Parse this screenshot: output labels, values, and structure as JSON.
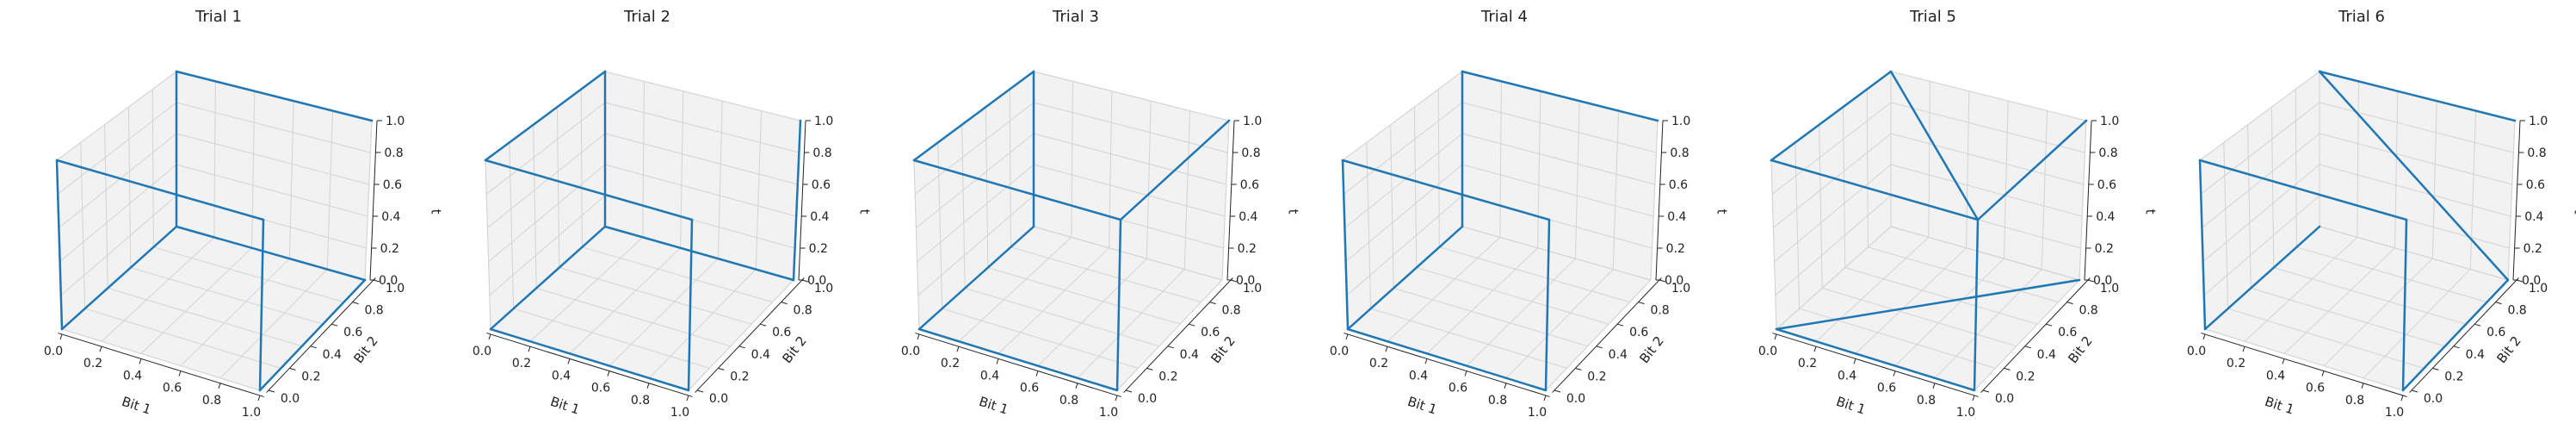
{
  "chart_data": [
    {
      "type": "line3d",
      "title": "Trial 1",
      "xlabel": "Bit 1",
      "ylabel": "Bit 2",
      "zlabel": "t",
      "xlim": [
        0,
        1
      ],
      "ylim": [
        0,
        1
      ],
      "zlim": [
        0,
        1
      ],
      "xticks": [
        "0.0",
        "0.2",
        "0.4",
        "0.6",
        "0.8",
        "1.0"
      ],
      "yticks": [
        "0.0",
        "0.2",
        "0.4",
        "0.6",
        "0.8",
        "1.0"
      ],
      "zticks": [
        "0.0",
        "0.2",
        "0.4",
        "0.6",
        "0.8",
        "1.0"
      ],
      "color": "#1f77b4",
      "points": [
        [
          1,
          1,
          1
        ],
        [
          0,
          1,
          1
        ],
        [
          0,
          1,
          0
        ],
        [
          0,
          0,
          0
        ],
        [
          0,
          0,
          1
        ],
        [
          1,
          0,
          1
        ],
        [
          1,
          0,
          0
        ],
        [
          1,
          1,
          0
        ],
        [
          0,
          1,
          0
        ]
      ]
    },
    {
      "type": "line3d",
      "title": "Trial 2",
      "xlabel": "Bit 1",
      "ylabel": "Bit 2",
      "zlabel": "t",
      "xlim": [
        0,
        1
      ],
      "ylim": [
        0,
        1
      ],
      "zlim": [
        0,
        1
      ],
      "xticks": [
        "0.0",
        "0.2",
        "0.4",
        "0.6",
        "0.8",
        "1.0"
      ],
      "yticks": [
        "0.0",
        "0.2",
        "0.4",
        "0.6",
        "0.8",
        "1.0"
      ],
      "zticks": [
        "0.0",
        "0.2",
        "0.4",
        "0.6",
        "0.8",
        "1.0"
      ],
      "color": "#1f77b4",
      "points": [
        [
          1,
          1,
          1
        ],
        [
          1,
          1,
          0
        ],
        [
          0,
          1,
          0
        ],
        [
          0,
          1,
          1
        ],
        [
          0,
          0,
          1
        ],
        [
          1,
          0,
          1
        ],
        [
          1,
          0,
          0
        ],
        [
          0,
          0,
          0
        ],
        [
          0,
          1,
          0
        ]
      ]
    },
    {
      "type": "line3d",
      "title": "Trial 3",
      "xlabel": "Bit 1",
      "ylabel": "Bit 2",
      "zlabel": "t",
      "xlim": [
        0,
        1
      ],
      "ylim": [
        0,
        1
      ],
      "zlim": [
        0,
        1
      ],
      "xticks": [
        "0.0",
        "0.2",
        "0.4",
        "0.6",
        "0.8",
        "1.0"
      ],
      "yticks": [
        "0.0",
        "0.2",
        "0.4",
        "0.6",
        "0.8",
        "1.0"
      ],
      "zticks": [
        "0.0",
        "0.2",
        "0.4",
        "0.6",
        "0.8",
        "1.0"
      ],
      "color": "#1f77b4",
      "points": [
        [
          1,
          1,
          1
        ],
        [
          1,
          0,
          1
        ],
        [
          0,
          0,
          1
        ],
        [
          0,
          1,
          1
        ],
        [
          0,
          1,
          0
        ],
        [
          0,
          0,
          0
        ],
        [
          1,
          0,
          0
        ],
        [
          1,
          0,
          1
        ]
      ]
    },
    {
      "type": "line3d",
      "title": "Trial 4",
      "xlabel": "Bit 1",
      "ylabel": "Bit 2",
      "zlabel": "t",
      "xlim": [
        0,
        1
      ],
      "ylim": [
        0,
        1
      ],
      "zlim": [
        0,
        1
      ],
      "xticks": [
        "0.0",
        "0.2",
        "0.4",
        "0.6",
        "0.8",
        "1.0"
      ],
      "yticks": [
        "0.0",
        "0.2",
        "0.4",
        "0.6",
        "0.8",
        "1.0"
      ],
      "zticks": [
        "0.0",
        "0.2",
        "0.4",
        "0.6",
        "0.8",
        "1.0"
      ],
      "color": "#1f77b4",
      "points": [
        [
          1,
          1,
          1
        ],
        [
          0,
          1,
          1
        ],
        [
          0,
          1,
          0
        ],
        [
          0,
          0,
          0
        ],
        [
          0,
          0,
          1
        ],
        [
          1,
          0,
          1
        ],
        [
          1,
          0,
          0
        ],
        [
          0,
          0,
          0
        ]
      ]
    },
    {
      "type": "line3d",
      "title": "Trial 5",
      "xlabel": "Bit 1",
      "ylabel": "Bit 2",
      "zlabel": "t",
      "xlim": [
        0,
        1
      ],
      "ylim": [
        0,
        1
      ],
      "zlim": [
        0,
        1
      ],
      "xticks": [
        "0.0",
        "0.2",
        "0.4",
        "0.6",
        "0.8",
        "1.0"
      ],
      "yticks": [
        "0.0",
        "0.2",
        "0.4",
        "0.6",
        "0.8",
        "1.0"
      ],
      "zticks": [
        "0.0",
        "0.2",
        "0.4",
        "0.6",
        "0.8",
        "1.0"
      ],
      "color": "#1f77b4",
      "points": [
        [
          1,
          1,
          1
        ],
        [
          1,
          0,
          1
        ],
        [
          0,
          0,
          1
        ],
        [
          0,
          1,
          1
        ],
        [
          1,
          0,
          1
        ],
        [
          1,
          0,
          0
        ],
        [
          0,
          0,
          0
        ],
        [
          1,
          1,
          0
        ]
      ]
    },
    {
      "type": "line3d",
      "title": "Trial 6",
      "xlabel": "Bit 1",
      "ylabel": "Bit 2",
      "zlabel": "t",
      "xlim": [
        0,
        1
      ],
      "ylim": [
        0,
        1
      ],
      "zlim": [
        0,
        1
      ],
      "xticks": [
        "0.0",
        "0.2",
        "0.4",
        "0.6",
        "0.8",
        "1.0"
      ],
      "yticks": [
        "0.0",
        "0.2",
        "0.4",
        "0.6",
        "0.8",
        "1.0"
      ],
      "zticks": [
        "0.0",
        "0.2",
        "0.4",
        "0.6",
        "0.8",
        "1.0"
      ],
      "color": "#1f77b4",
      "points": [
        [
          1,
          1,
          1
        ],
        [
          0,
          1,
          1
        ],
        [
          1,
          1,
          0
        ],
        [
          1,
          0,
          0
        ],
        [
          1,
          0,
          1
        ],
        [
          0,
          0,
          1
        ],
        [
          0,
          0,
          0
        ],
        [
          0,
          1,
          0
        ]
      ]
    }
  ]
}
